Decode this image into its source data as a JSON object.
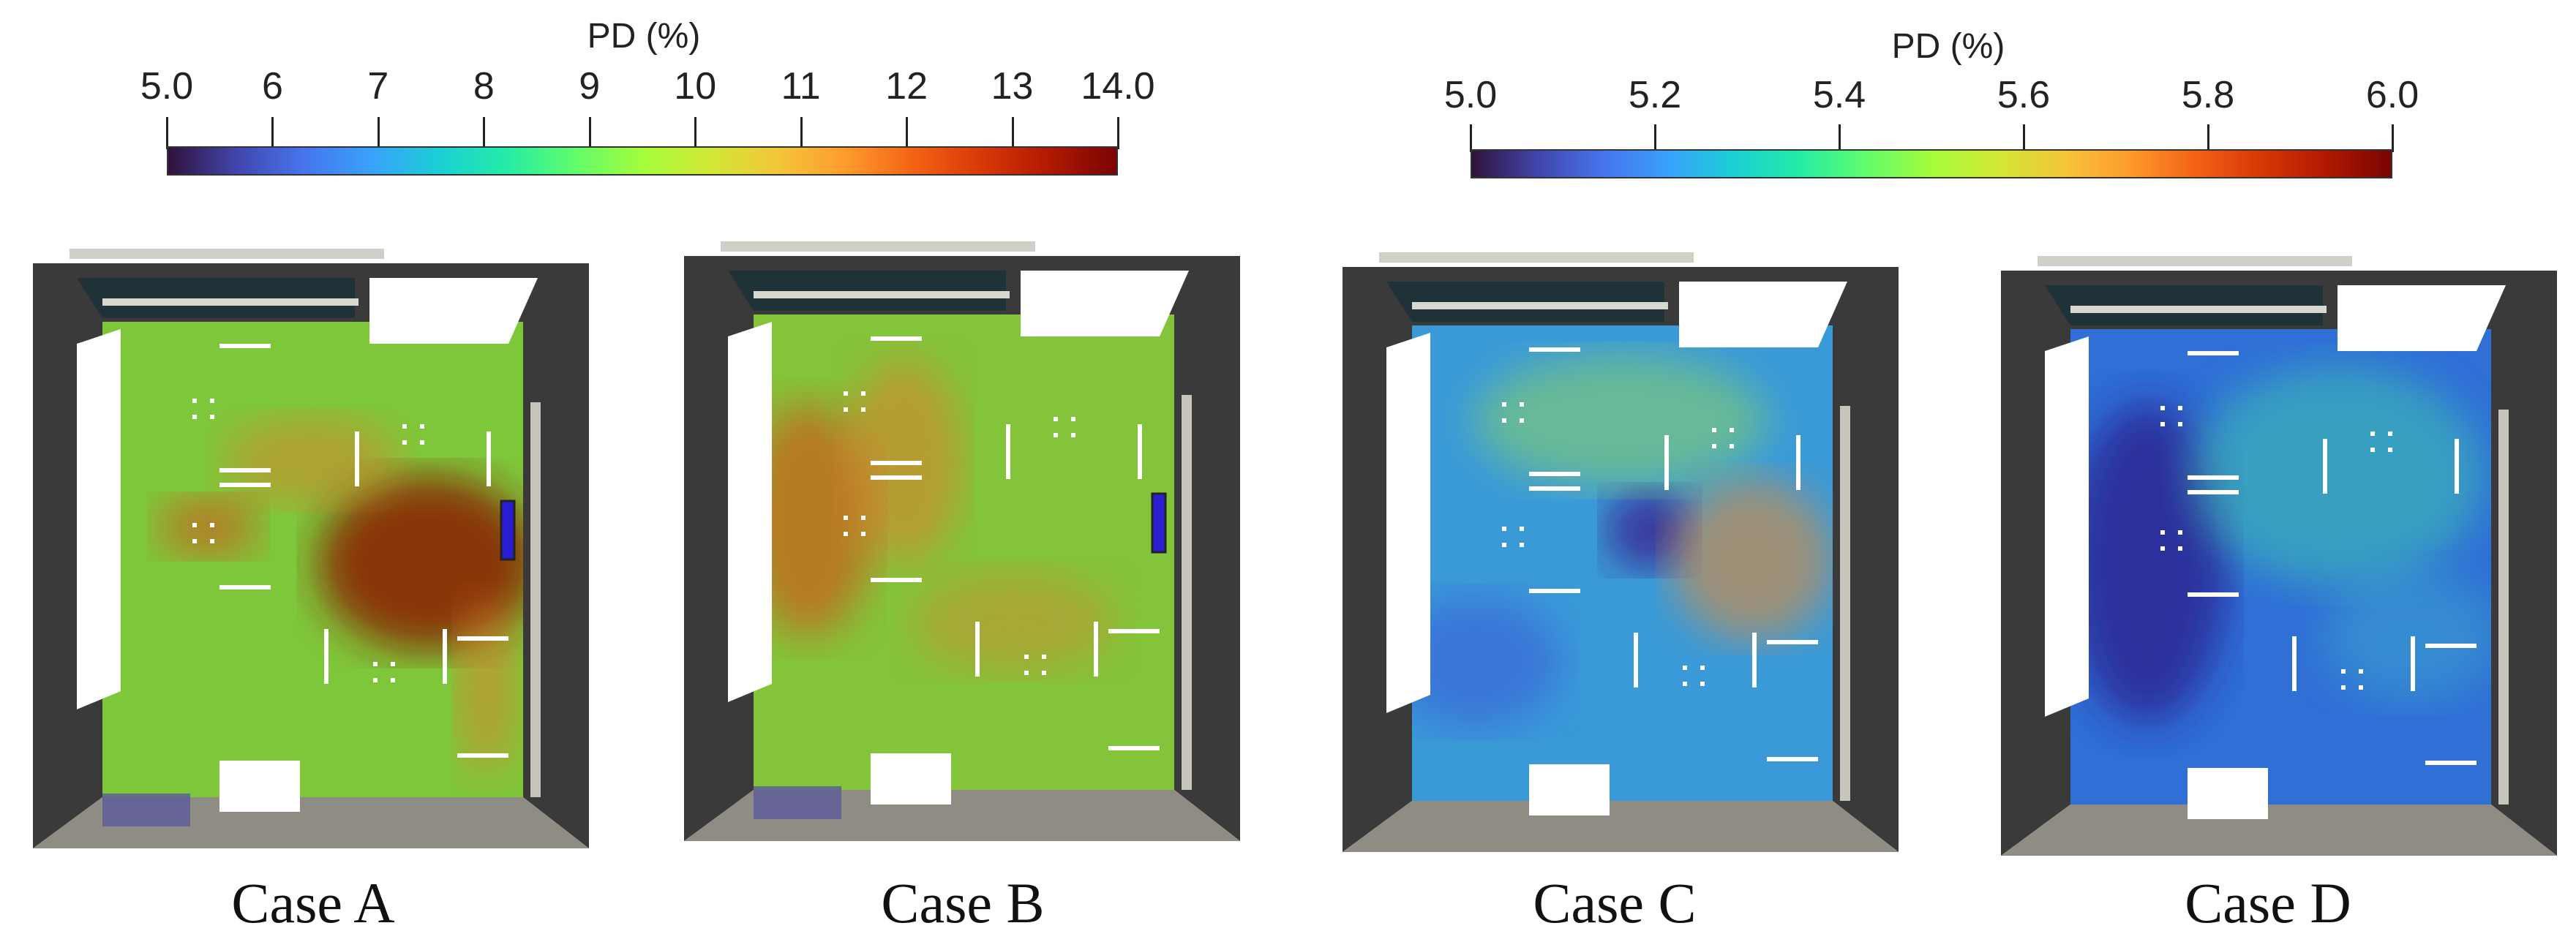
{
  "colorbars": [
    {
      "title": "PD (%)",
      "ticks": [
        "5.0",
        "6",
        "7",
        "8",
        "9",
        "10",
        "11",
        "12",
        "13",
        "14.0"
      ],
      "range": [
        5.0,
        14.0
      ],
      "colormap": "turbo"
    },
    {
      "title": "PD (%)",
      "ticks": [
        "5.0",
        "5.2",
        "5.4",
        "5.6",
        "5.8",
        "6.0"
      ],
      "range": [
        5.0,
        6.0
      ],
      "colormap": "turbo"
    }
  ],
  "panels": [
    {
      "label": "Case A",
      "base_color": "#7fc73a",
      "scale": "left"
    },
    {
      "label": "Case B",
      "base_color": "#83c43a",
      "scale": "left"
    },
    {
      "label": "Case C",
      "base_color": "#3a9ad8",
      "scale": "right"
    },
    {
      "label": "Case D",
      "base_color": "#2f6fd6",
      "scale": "right"
    }
  ],
  "colors": {
    "wall_dark": "#3a3a3a",
    "floor_gray": "#8f8c83",
    "furniture_white": "#ffffff",
    "diffuser_blue": "#2a1fd0",
    "vent_purple": "#5a5a9a"
  }
}
